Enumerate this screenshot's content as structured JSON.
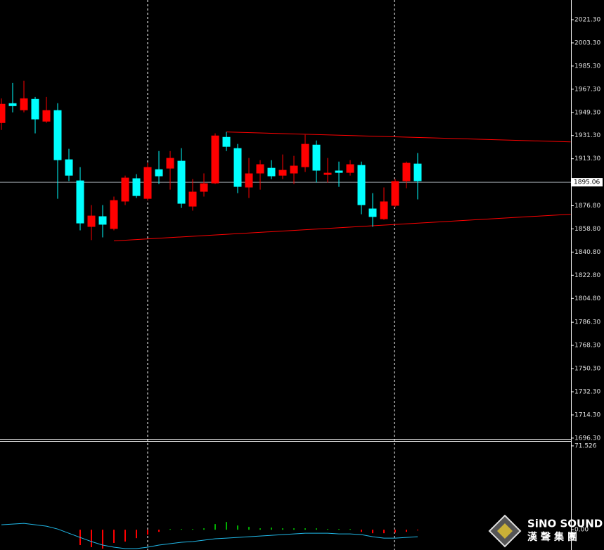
{
  "chart_data": [
    {
      "type": "candlestick",
      "categories": [
        null,
        null,
        null,
        null,
        null,
        null,
        null,
        null,
        null,
        null,
        null,
        null,
        null,
        null,
        null,
        null,
        null,
        null,
        null,
        null,
        null,
        null,
        null,
        null,
        null,
        null,
        null,
        null,
        null,
        null,
        null,
        null,
        null,
        null,
        null,
        null,
        null,
        null
      ],
      "open": [
        1941.1,
        1956.4,
        1951.0,
        1959.7,
        1942.2,
        1951.0,
        1912.8,
        1896.4,
        1860.4,
        1868.6,
        1858.8,
        1880.1,
        1898.1,
        1882.2,
        1905.1,
        1905.7,
        1911.7,
        1876.2,
        1887.7,
        1894.2,
        1930.2,
        1921.5,
        1891.0,
        1901.9,
        1906.2,
        1900.2,
        1901.9,
        1906.8,
        1924.2,
        1900.8,
        1904.1,
        1902.4,
        1908.4,
        1874.6,
        1866.4,
        1876.8,
        1895.9,
        1909.5
      ],
      "high": [
        1960.2,
        1972.2,
        1973.9,
        1961.3,
        1961.3,
        1956.4,
        1921.0,
        1906.8,
        1877.3,
        1877.3,
        1883.9,
        1900.2,
        1901.3,
        1910.1,
        1919.3,
        1919.3,
        1921.5,
        1897.5,
        1901.9,
        1933.0,
        1934.1,
        1924.8,
        1913.9,
        1912.2,
        1912.2,
        1916.6,
        1915.5,
        1931.9,
        1927.5,
        1913.9,
        1911.1,
        1912.2,
        1911.1,
        1886.6,
        1891.0,
        1897.5,
        1911.1,
        1917.7
      ],
      "low": [
        1935.7,
        1949.3,
        1949.3,
        1933.0,
        1941.1,
        1882.2,
        1895.9,
        1857.7,
        1850.1,
        1852.2,
        1857.7,
        1877.3,
        1882.8,
        1881.1,
        1893.7,
        1889.3,
        1875.1,
        1873.0,
        1883.9,
        1893.7,
        1919.3,
        1886.6,
        1882.8,
        1889.3,
        1897.5,
        1897.5,
        1893.7,
        1903.0,
        1894.8,
        1894.8,
        1891.5,
        1900.2,
        1870.2,
        1860.4,
        1865.9,
        1875.7,
        1890.4,
        1881.7
      ],
      "close": [
        1955.9,
        1954.2,
        1960.2,
        1943.9,
        1951.0,
        1912.2,
        1900.2,
        1863.1,
        1869.1,
        1862.1,
        1881.1,
        1898.6,
        1884.4,
        1906.8,
        1899.7,
        1913.9,
        1878.4,
        1887.7,
        1894.2,
        1931.3,
        1922.6,
        1891.5,
        1901.9,
        1909.0,
        1899.7,
        1904.6,
        1907.9,
        1924.8,
        1904.1,
        1902.4,
        1902.4,
        1909.0,
        1877.3,
        1868.1,
        1880.1,
        1895.9,
        1910.1,
        1895.9
      ],
      "up_color": "#ff0000",
      "down_color": "#00ffff",
      "ylim": [
        1695.7,
        2036.6
      ],
      "yticks": [
        {
          "value": 2021.3,
          "label": "2021.30"
        },
        {
          "value": 2003.3,
          "label": "2003.30"
        },
        {
          "value": 1985.3,
          "label": "1985.30"
        },
        {
          "value": 1967.3,
          "label": "1967.30"
        },
        {
          "value": 1949.3,
          "label": "1949.30"
        },
        {
          "value": 1931.3,
          "label": "1931.30"
        },
        {
          "value": 1913.3,
          "label": "1913.30"
        },
        {
          "value": 1876.8,
          "label": "1876.80"
        },
        {
          "value": 1858.8,
          "label": "1858.80"
        },
        {
          "value": 1840.8,
          "label": "1840.80"
        },
        {
          "value": 1822.8,
          "label": "1822.80"
        },
        {
          "value": 1804.8,
          "label": "1804.80"
        },
        {
          "value": 1786.3,
          "label": "1786.30"
        },
        {
          "value": 1768.3,
          "label": "1768.30"
        },
        {
          "value": 1750.3,
          "label": "1750.30"
        },
        {
          "value": 1732.3,
          "label": "1732.30"
        },
        {
          "value": 1714.3,
          "label": "1714.30"
        },
        {
          "value": 1696.3,
          "label": "1696.30"
        }
      ],
      "current_price": 1895.06,
      "trendlines": [
        {
          "start": [
            20,
            1934.1
          ],
          "end": [
            50.6,
            1926.4
          ],
          "color": "#ff0000"
        },
        {
          "start": [
            10,
            1849.5
          ],
          "end": [
            50.6,
            1870.2
          ],
          "color": "#ff0000"
        }
      ]
    },
    {
      "type": "histogram-indicator",
      "values": [
        null,
        null,
        null,
        null,
        null,
        null,
        null,
        -13.1,
        -14.9,
        -16.1,
        -11.3,
        -10.1,
        -7.2,
        -4.2,
        -1.8,
        0.6,
        0.6,
        0.6,
        1.2,
        4.8,
        6.6,
        3.6,
        2.4,
        1.2,
        1.8,
        1.2,
        1.2,
        1.2,
        1.2,
        0.6,
        0.6,
        0.6,
        -1.8,
        -3.0,
        -3.0,
        -2.4,
        -1.8,
        -0.6
      ],
      "line_values": [
        4.2,
        4.8,
        5.4,
        4.2,
        3.0,
        0.6,
        -3.0,
        -6.6,
        -10.1,
        -13.1,
        -14.9,
        -16.1,
        -16.1,
        -14.9,
        -13.1,
        -11.9,
        -10.7,
        -10.1,
        -8.9,
        -7.7,
        -7.2,
        -6.6,
        -6.0,
        -5.4,
        -4.8,
        -4.2,
        -3.6,
        -3.0,
        -3.0,
        -3.0,
        -3.6,
        -3.6,
        -4.2,
        -6.0,
        -7.2,
        -7.2,
        -6.6,
        -6.0
      ],
      "positive_color": "#00b000",
      "negative_color": "#ff0000",
      "line_color": "#20b8e8",
      "ylim": [
        -17.3,
        75.1
      ],
      "yticks": [
        71.526,
        {
          "value": 0,
          "label": "0.00"
        }
      ]
    }
  ],
  "logo": {
    "name": "SiNO SOUND",
    "subtitle": "漢聲集團"
  }
}
